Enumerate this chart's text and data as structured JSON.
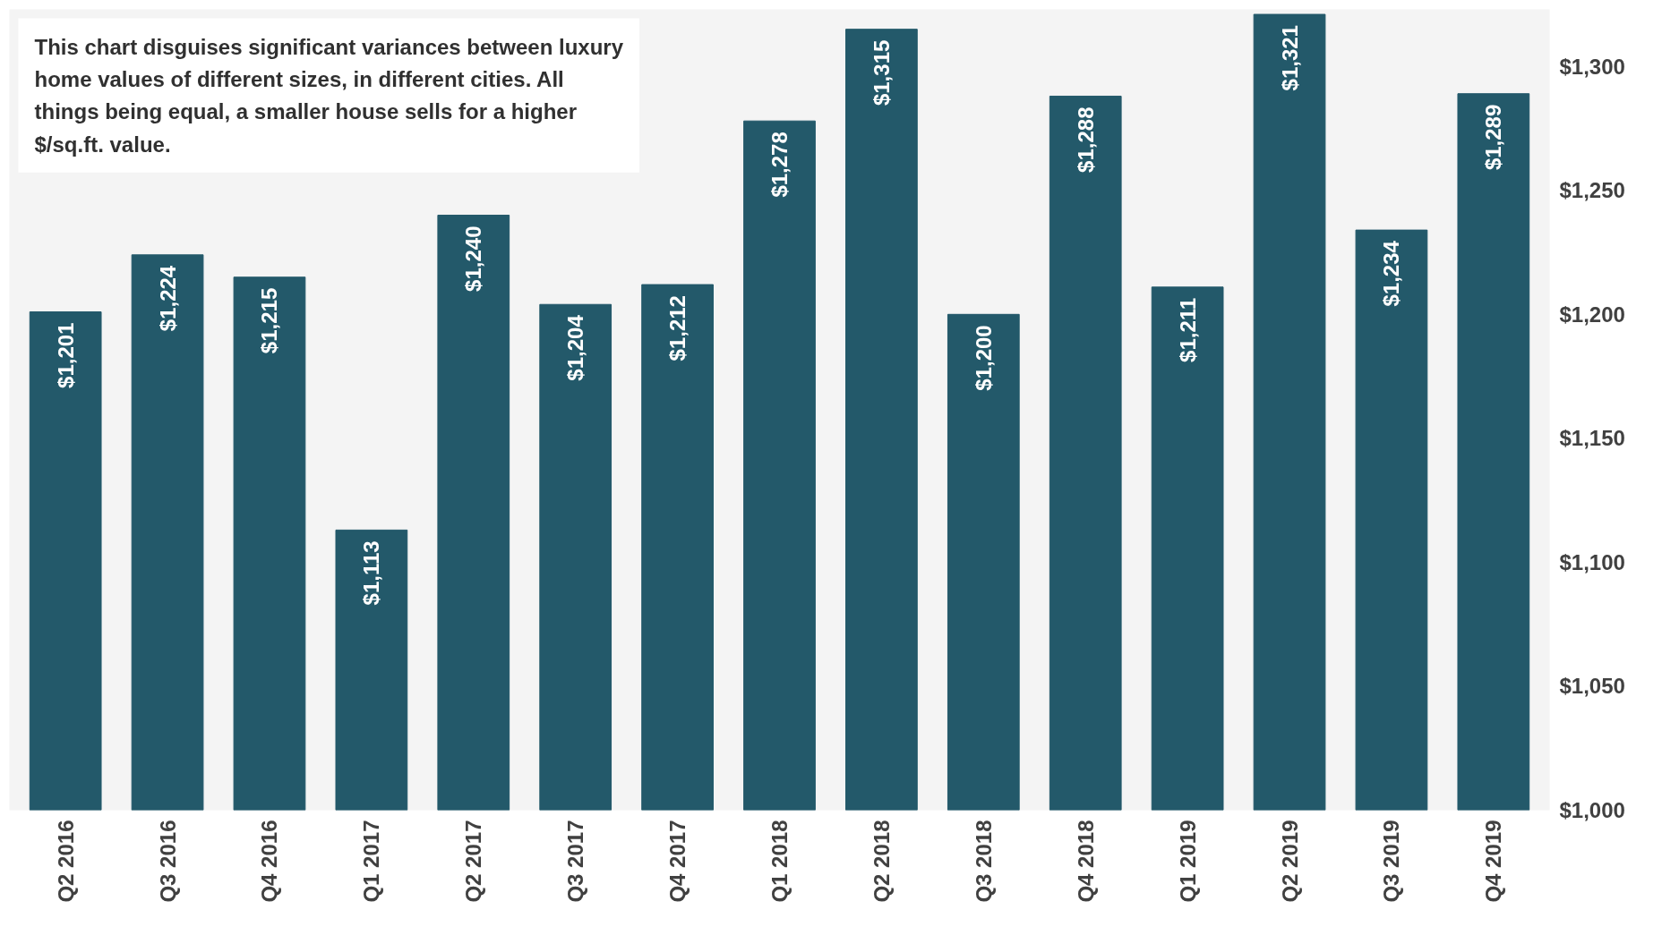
{
  "chart_data": {
    "type": "bar",
    "categories": [
      "Q2 2016",
      "Q3 2016",
      "Q4 2016",
      "Q1 2017",
      "Q2 2017",
      "Q3 2017",
      "Q4 2017",
      "Q1 2018",
      "Q2 2018",
      "Q3 2018",
      "Q4 2018",
      "Q1 2019",
      "Q2 2019",
      "Q3 2019",
      "Q4 2019"
    ],
    "values": [
      1201,
      1224,
      1215,
      1113,
      1240,
      1204,
      1212,
      1278,
      1315,
      1200,
      1288,
      1211,
      1321,
      1234,
      1289
    ],
    "value_labels": [
      "$1,201",
      "$1,224",
      "$1,215",
      "$1,113",
      "$1,240",
      "$1,204",
      "$1,212",
      "$1,278",
      "$1,315",
      "$1,200",
      "$1,288",
      "$1,211",
      "$1,321",
      "$1,234",
      "$1,289"
    ],
    "color": "#23596a",
    "ylim": [
      1000,
      1323
    ],
    "yticks": [
      {
        "value": 1000,
        "label": "$1,000"
      },
      {
        "value": 1050,
        "label": "$1,050"
      },
      {
        "value": 1100,
        "label": "$1,100"
      },
      {
        "value": 1150,
        "label": "$1,150"
      },
      {
        "value": 1200,
        "label": "$1,200"
      },
      {
        "value": 1250,
        "label": "$1,250"
      },
      {
        "value": 1300,
        "label": "$1,300"
      }
    ],
    "grid": false,
    "annotations": [
      "This chart disguises significant variances between luxury home values of different sizes, in different cities. All things being equal, a smaller house sells for a higher $/sq.ft. value."
    ]
  }
}
